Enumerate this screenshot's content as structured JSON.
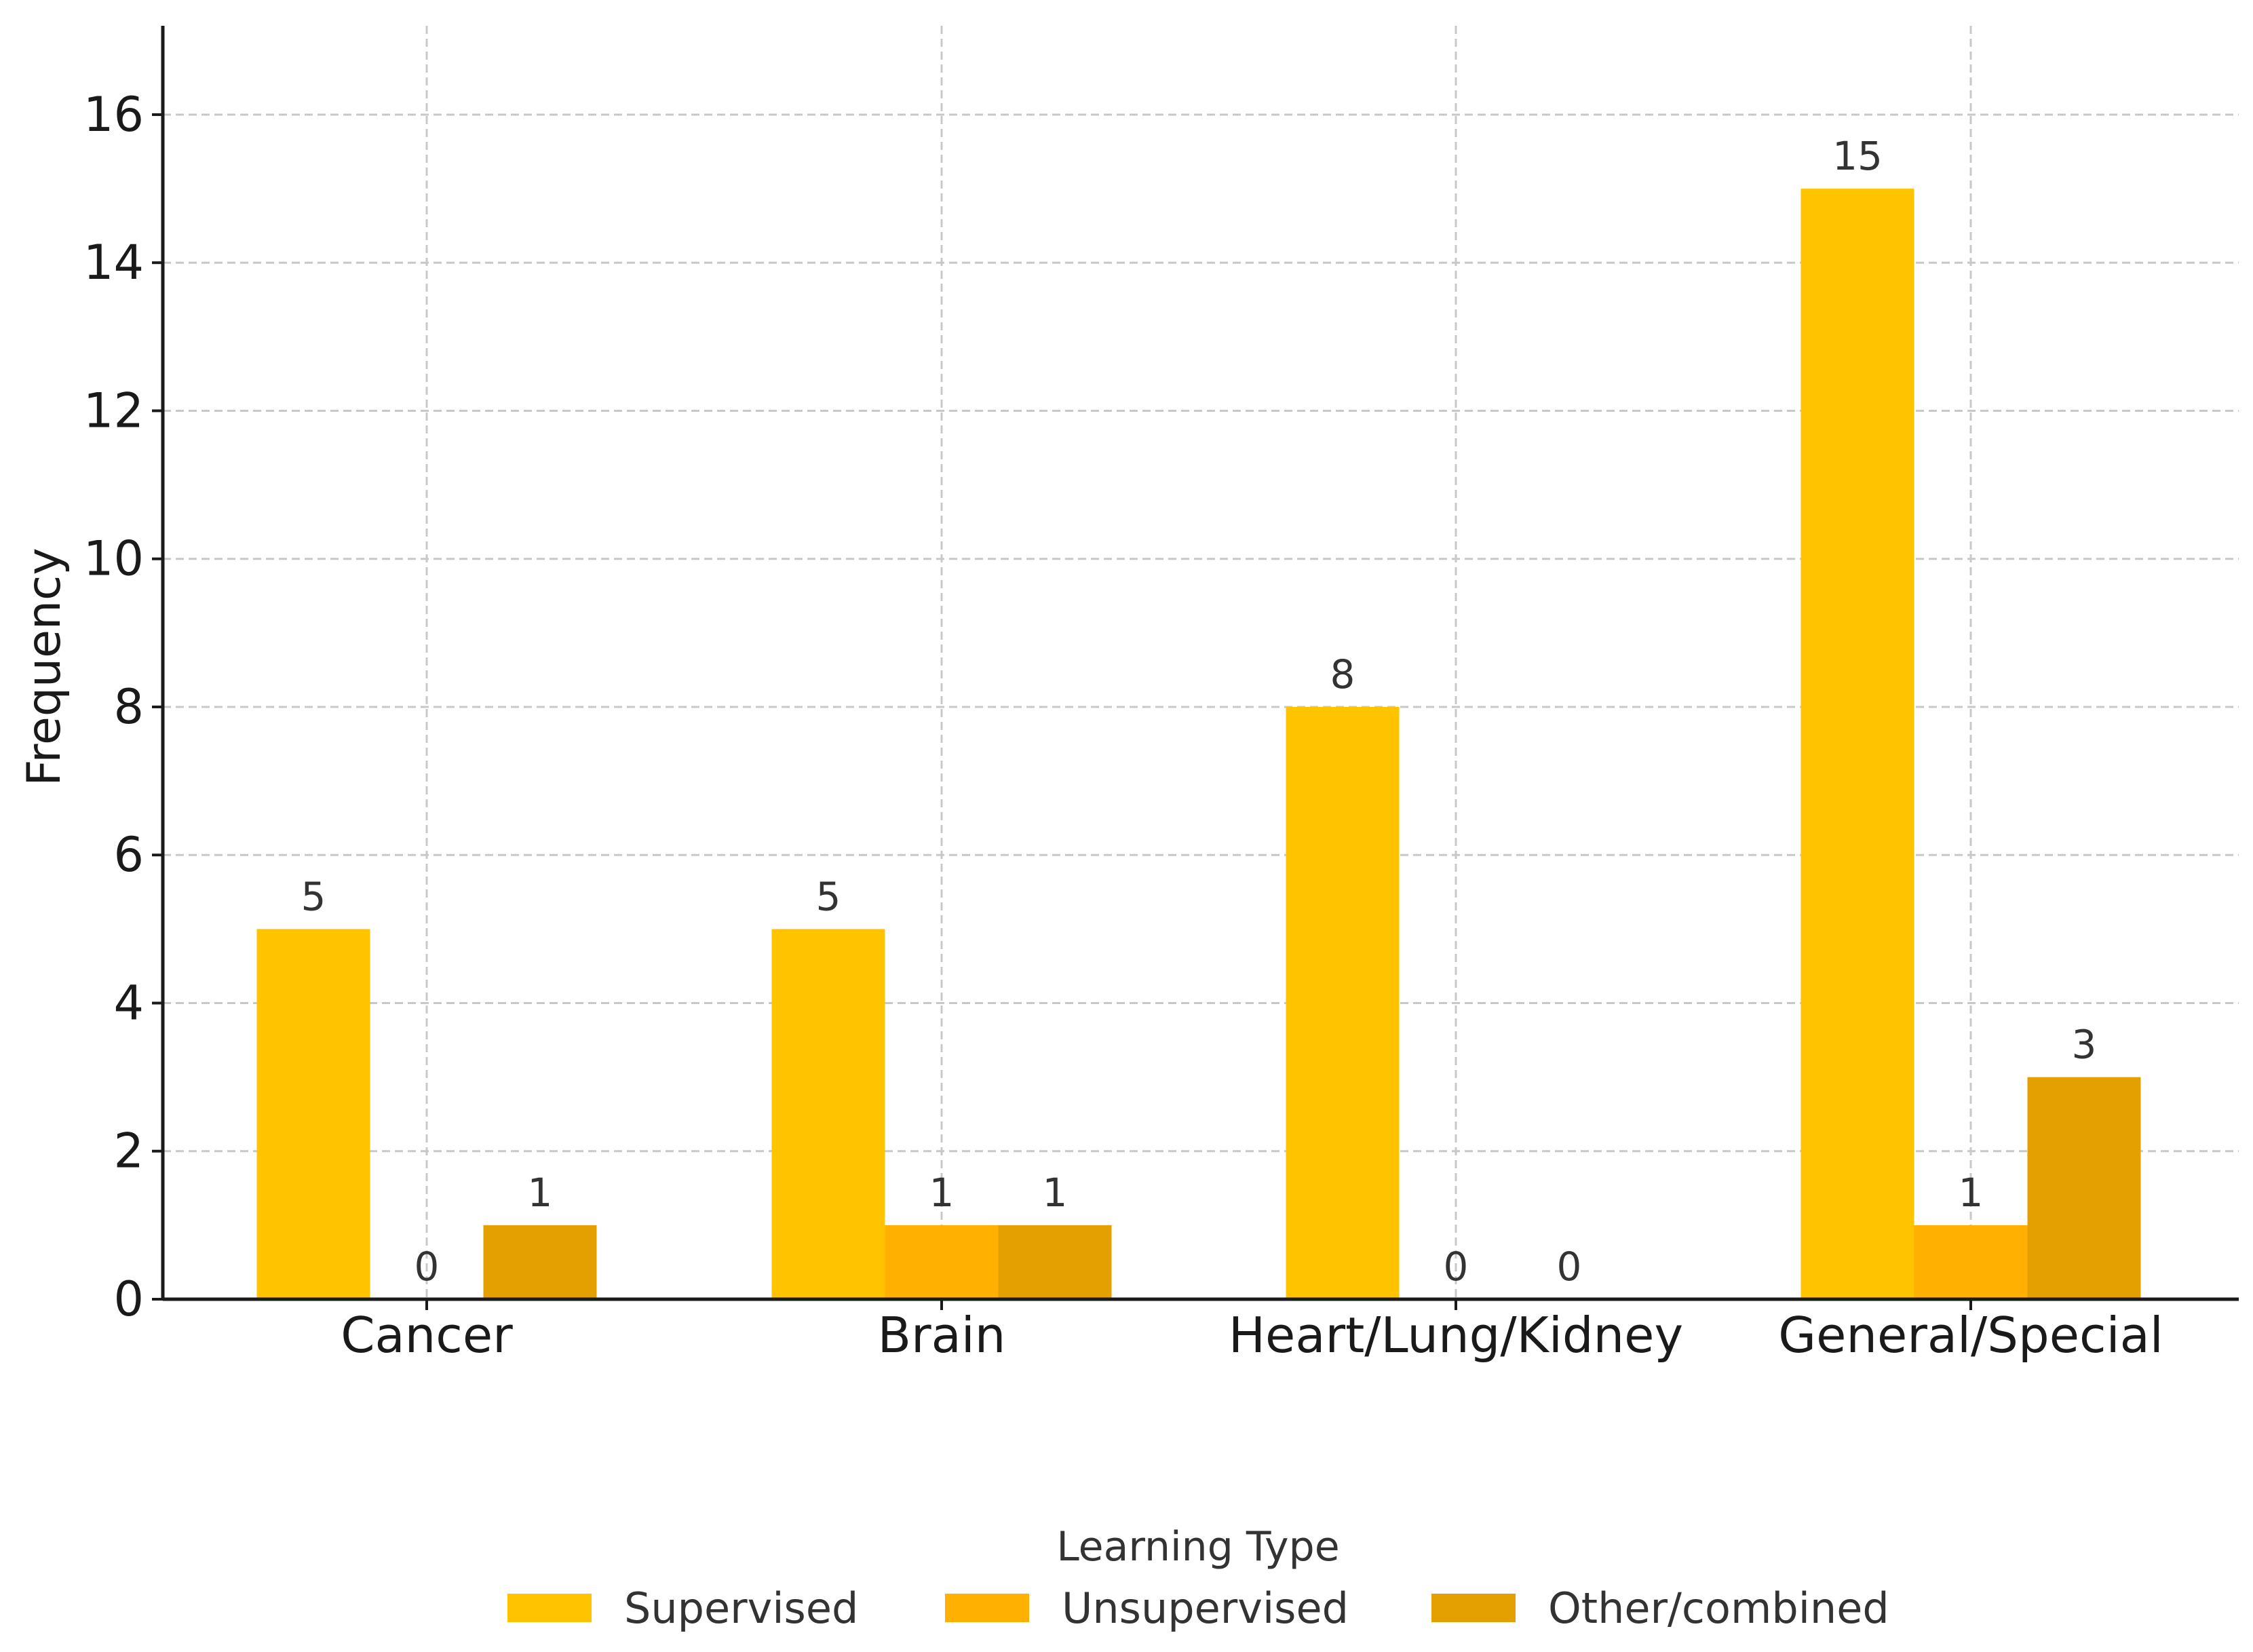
{
  "chart_data": {
    "type": "bar",
    "title": "",
    "xlabel": "",
    "ylabel": "Frequency",
    "categories": [
      "Cancer",
      "Brain",
      "Heart/Lung/Kidney",
      "General/Special"
    ],
    "series": [
      {
        "name": "Supervised",
        "values": [
          5,
          5,
          8,
          15
        ],
        "color": "#FFC300"
      },
      {
        "name": "Unsupervised",
        "values": [
          0,
          1,
          0,
          1
        ],
        "color": "#FFB000"
      },
      {
        "name": "Other/combined",
        "values": [
          1,
          1,
          0,
          3
        ],
        "color": "#E3A000"
      }
    ],
    "ylim": [
      0,
      17.2
    ],
    "yticks": [
      0,
      2,
      4,
      6,
      8,
      10,
      12,
      14,
      16
    ],
    "grid": true,
    "legend": {
      "title": "Learning Type",
      "placement": "bottom-center"
    },
    "axis_color": "#1a1a1a",
    "grid_color": "#c8c8c8"
  }
}
